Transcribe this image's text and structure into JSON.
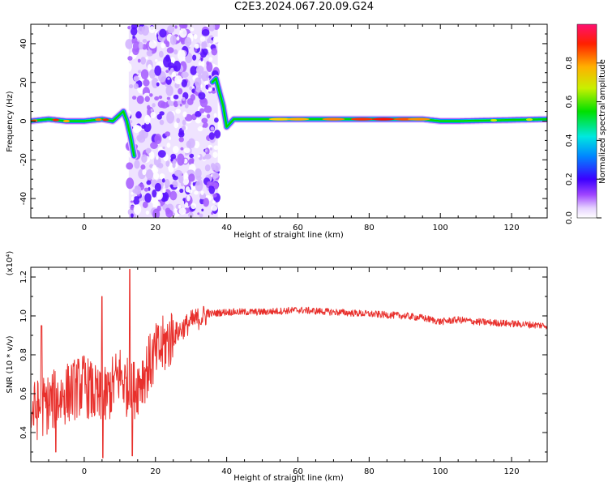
{
  "title": "C2E3.2024.067.20.09.G24",
  "chart_data": [
    {
      "type": "heatmap",
      "xlabel": "Height of straight line (km)",
      "ylabel": "Frequency (Hz)",
      "xlim": [
        -15,
        130
      ],
      "ylim": [
        -50,
        50
      ],
      "xticks": [
        0,
        20,
        40,
        60,
        80,
        100,
        120
      ],
      "yticks": [
        -40,
        -20,
        0,
        20,
        40
      ],
      "colorbar": {
        "label": "Normalized spectral amplitude",
        "range": [
          0,
          1
        ],
        "ticks": [
          "0.0",
          "0.2",
          "0.4",
          "0.6",
          "0.8"
        ]
      },
      "ridge": {
        "x": [
          -15,
          -10,
          -5,
          0,
          5,
          8,
          11,
          12,
          13,
          14,
          15,
          37,
          38,
          39,
          40,
          42,
          45,
          60,
          80,
          95,
          100,
          105,
          130
        ],
        "f": [
          0,
          1,
          0,
          0,
          1,
          0,
          5,
          0,
          -8,
          -18,
          -20,
          22,
          15,
          8,
          -3,
          1,
          1,
          1,
          1,
          1,
          0,
          0,
          1
        ]
      },
      "noise_band_x": [
        12.5,
        37.5
      ]
    },
    {
      "type": "line",
      "xlabel": "Height of straight line (km)",
      "ylabel": "SNR (10 * v/v)",
      "yscale_label": "(x10⁴)",
      "xlim": [
        -15,
        130
      ],
      "ylim": [
        0.25,
        1.25
      ],
      "xticks": [
        0,
        20,
        40,
        60,
        80,
        100,
        120
      ],
      "yticks": [
        "0.4",
        "0.6",
        "0.8",
        "1.0",
        "1.2"
      ],
      "color": "#e8302c",
      "envelope": {
        "x": [
          -15,
          -10,
          -5,
          0,
          5,
          10,
          13,
          15,
          20,
          25,
          30,
          35,
          40,
          50,
          60,
          70,
          80,
          90,
          95,
          100,
          105,
          110,
          120,
          130
        ],
        "y": [
          0.5,
          0.55,
          0.6,
          0.65,
          0.55,
          0.7,
          0.6,
          0.65,
          0.8,
          0.9,
          0.97,
          1.01,
          1.02,
          1.02,
          1.03,
          1.02,
          1.01,
          1.0,
          0.99,
          0.97,
          0.98,
          0.97,
          0.96,
          0.95
        ]
      },
      "spikes": [
        [
          -12,
          0.95
        ],
        [
          -8,
          0.3
        ],
        [
          5,
          1.1
        ],
        [
          5.2,
          0.27
        ],
        [
          12.8,
          1.24
        ],
        [
          13.5,
          0.28
        ]
      ]
    }
  ]
}
